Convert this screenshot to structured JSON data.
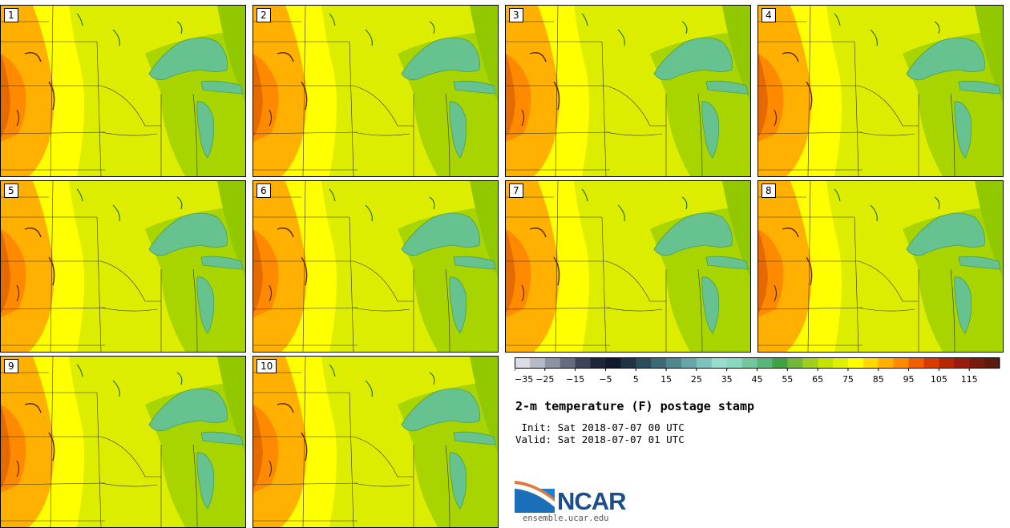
{
  "panels": [
    {
      "label": "1"
    },
    {
      "label": "2"
    },
    {
      "label": "3"
    },
    {
      "label": "4"
    },
    {
      "label": "5"
    },
    {
      "label": "6"
    },
    {
      "label": "7"
    },
    {
      "label": "8"
    },
    {
      "label": "9"
    },
    {
      "label": "10"
    }
  ],
  "colorbar": {
    "tick_labels": [
      "−35",
      "−25",
      "−15",
      "−5",
      "5",
      "15",
      "25",
      "35",
      "45",
      "55",
      "65",
      "75",
      "85",
      "95",
      "105",
      "115"
    ],
    "colors": [
      "#dcdde5",
      "#b6bac6",
      "#8e93a4",
      "#666c80",
      "#3c435a",
      "#1e2639",
      "#0f1a2e",
      "#1f3347",
      "#2c4d5d",
      "#3c6a77",
      "#4f8790",
      "#66a5a8",
      "#7ec2bf",
      "#98dccf",
      "#8ad8c0",
      "#72c79c",
      "#5ab57b",
      "#43a047",
      "#6fb83a",
      "#9fcf1e",
      "#c6e200",
      "#e3ef00",
      "#ffff00",
      "#ffd900",
      "#ffb000",
      "#ff8a00",
      "#f06000",
      "#d83a00",
      "#b82800",
      "#981c10",
      "#7a1a0e",
      "#5e1a0c"
    ]
  },
  "title": "2-m temperature (F) postage stamp",
  "init_line": " Init: Sat 2018-07-07 00 UTC",
  "valid_line": "Valid: Sat 2018-07-07 01 UTC",
  "logo": {
    "name": "NCAR",
    "url": "ensemble.ucar.edu"
  },
  "map_colors": {
    "warm": "#ffff00",
    "yellow_green": "#dced00",
    "green": "#a8d400",
    "orange": "#ffb000",
    "hot": "#ff8a00",
    "lake": "#66c28e",
    "lake_edge": "#4aa05a"
  }
}
